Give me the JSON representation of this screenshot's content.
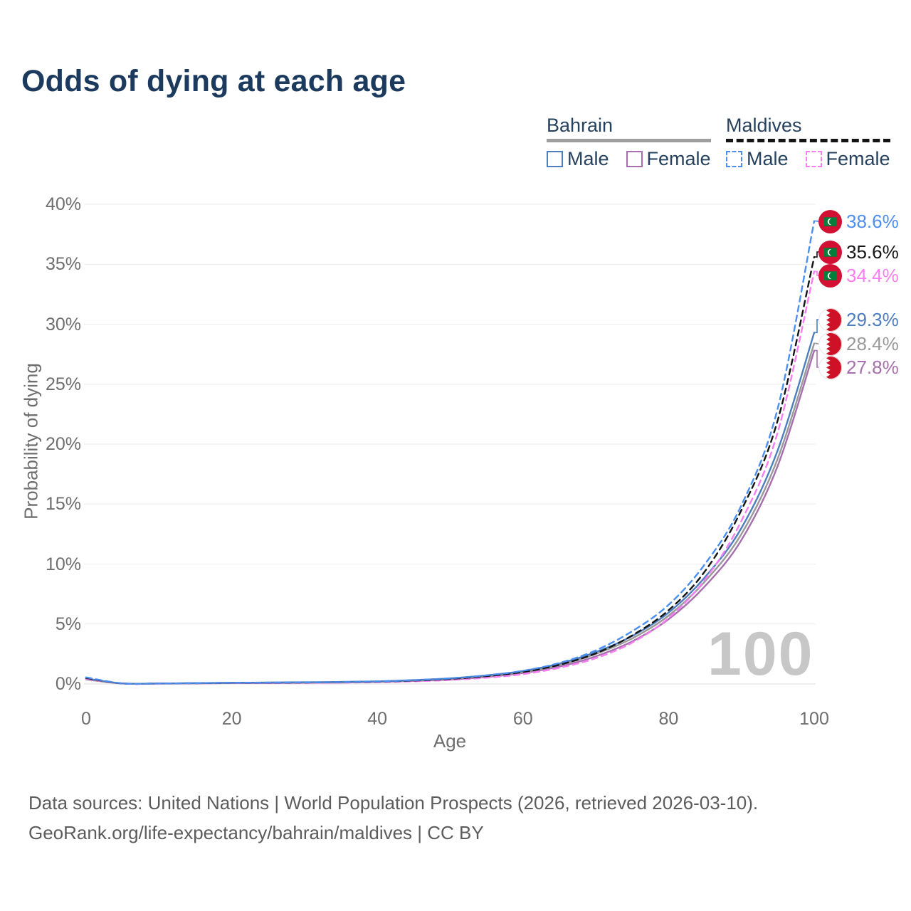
{
  "title": "Odds of dying at each age",
  "legend": {
    "groups": [
      {
        "label": "Bahrain",
        "line_style": "solid",
        "underline_color": "#9e9e9e",
        "items": [
          {
            "label": "Male",
            "color": "#4d7ebf"
          },
          {
            "label": "Female",
            "color": "#a76fad"
          }
        ]
      },
      {
        "label": "Maldives",
        "line_style": "dashed",
        "underline_color": "#141414",
        "items": [
          {
            "label": "Male",
            "color": "#4b8ff0"
          },
          {
            "label": "Female",
            "color": "#f97ef2"
          }
        ]
      }
    ]
  },
  "chart_data": {
    "type": "line",
    "title": "Odds of dying at each age",
    "xlabel": "Age",
    "ylabel": "Probability of dying",
    "xlim": [
      0,
      100
    ],
    "ylim": [
      0,
      40
    ],
    "x_ticks": [
      0,
      20,
      40,
      60,
      80,
      100
    ],
    "y_ticks": [
      {
        "value": 0,
        "label": "0%"
      },
      {
        "value": 5,
        "label": "5%"
      },
      {
        "value": 10,
        "label": "10%"
      },
      {
        "value": 15,
        "label": "15%"
      },
      {
        "value": 20,
        "label": "20%"
      },
      {
        "value": 25,
        "label": "25%"
      },
      {
        "value": 30,
        "label": "30%"
      },
      {
        "value": 35,
        "label": "35%"
      },
      {
        "value": 40,
        "label": "40%"
      }
    ],
    "grid": "horizontal",
    "legend_position": "top-right",
    "watermark": "100",
    "ages": [
      0,
      5,
      10,
      15,
      20,
      25,
      30,
      35,
      40,
      45,
      50,
      55,
      60,
      65,
      70,
      75,
      80,
      85,
      90,
      95,
      100
    ],
    "series": [
      {
        "name": "Maldives Male",
        "country": "Maldives",
        "sex": "Male",
        "color": "#4b8ff0",
        "dash": true,
        "flag": "maldives",
        "end_label": "38.6%",
        "end_value": 38.6,
        "values": [
          0.55,
          0.05,
          0.04,
          0.07,
          0.1,
          0.11,
          0.13,
          0.16,
          0.21,
          0.31,
          0.47,
          0.72,
          1.1,
          1.75,
          2.8,
          4.4,
          6.6,
          10.0,
          14.9,
          23.0,
          38.6
        ]
      },
      {
        "name": "Maldives Both sexes",
        "country": "Maldives",
        "sex": "Both",
        "color": "#141414",
        "dash": true,
        "flag": "maldives",
        "end_label": "35.6%",
        "end_value": 35.6,
        "values": [
          0.5,
          0.04,
          0.04,
          0.06,
          0.09,
          0.1,
          0.12,
          0.15,
          0.19,
          0.28,
          0.42,
          0.65,
          1.0,
          1.6,
          2.55,
          4.05,
          6.15,
          9.4,
          14.5,
          22.0,
          35.6
        ]
      },
      {
        "name": "Maldives Female",
        "country": "Maldives",
        "sex": "Female",
        "color": "#f97ef2",
        "dash": true,
        "flag": "maldives",
        "end_label": "34.4%",
        "end_value": 34.4,
        "values": [
          0.45,
          0.04,
          0.03,
          0.05,
          0.07,
          0.08,
          0.09,
          0.11,
          0.15,
          0.22,
          0.33,
          0.52,
          0.82,
          1.35,
          2.15,
          3.45,
          5.5,
          8.7,
          13.6,
          21.0,
          34.4
        ]
      },
      {
        "name": "Bahrain Male",
        "country": "Bahrain",
        "sex": "Male",
        "color": "#4d7ebf",
        "dash": false,
        "flag": "bahrain",
        "end_label": "29.3%",
        "end_value": 29.3,
        "values": [
          0.45,
          0.05,
          0.04,
          0.07,
          0.1,
          0.12,
          0.14,
          0.17,
          0.22,
          0.32,
          0.47,
          0.72,
          1.08,
          1.7,
          2.65,
          4.0,
          5.95,
          8.9,
          13.0,
          19.5,
          29.3
        ]
      },
      {
        "name": "Bahrain Both sexes",
        "country": "Bahrain",
        "sex": "Both",
        "color": "#999999",
        "dash": false,
        "flag": "bahrain",
        "end_label": "28.4%",
        "end_value": 28.4,
        "values": [
          0.42,
          0.04,
          0.04,
          0.06,
          0.09,
          0.11,
          0.13,
          0.15,
          0.2,
          0.29,
          0.43,
          0.66,
          1.0,
          1.58,
          2.5,
          3.8,
          5.7,
          8.55,
          12.5,
          18.8,
          28.4
        ]
      },
      {
        "name": "Bahrain Female",
        "country": "Bahrain",
        "sex": "Female",
        "color": "#a76fad",
        "dash": false,
        "flag": "bahrain",
        "end_label": "27.8%",
        "end_value": 27.8,
        "values": [
          0.38,
          0.04,
          0.03,
          0.05,
          0.07,
          0.08,
          0.1,
          0.12,
          0.17,
          0.25,
          0.37,
          0.58,
          0.92,
          1.45,
          2.3,
          3.55,
          5.4,
          8.15,
          12.0,
          18.2,
          27.8
        ]
      }
    ]
  },
  "flag_colors": {
    "maldives_red": "#D21034",
    "maldives_green": "#007E3A",
    "bahrain_red": "#CE1126",
    "bahrain_white": "#FFFFFF"
  },
  "footer": {
    "line1": "Data sources: United Nations | World Population Prospects (2026, retrieved 2026-03-10).",
    "line2": "GeoRank.org/life-expectancy/bahrain/maldives | CC BY"
  }
}
